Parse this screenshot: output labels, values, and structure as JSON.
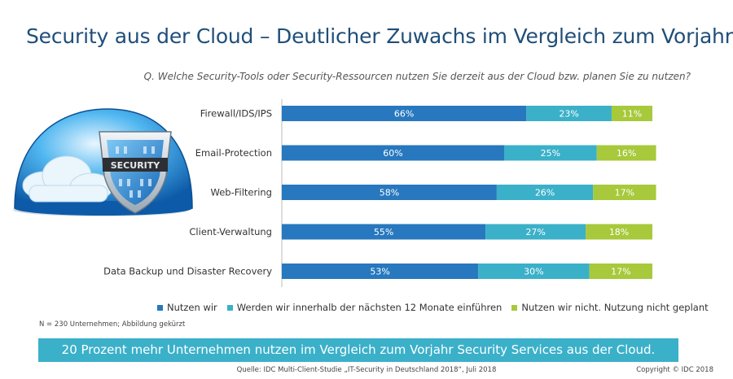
{
  "title": "Security aus der Cloud – Deutlicher Zuwachs im Vergleich zum Vorjahr",
  "question": "Q. Welche Security-Tools oder Security-Ressourcen nutzen Sie derzeit aus der Cloud bzw. planen Sie zu nutzen?",
  "illustration_text": "SECURITY",
  "chart_data": {
    "type": "bar",
    "orientation": "horizontal",
    "stacked": true,
    "categories": [
      "Firewall/IDS/IPS",
      "Email-Protection",
      "Web-Filtering",
      "Client-Verwaltung",
      "Data Backup und Disaster Recovery"
    ],
    "series": [
      {
        "name": "Nutzen wir",
        "color": "#2778be",
        "values": [
          66,
          60,
          58,
          55,
          53
        ]
      },
      {
        "name": "Werden wir innerhalb der nächsten 12 Monate einführen",
        "color": "#3bb0c9",
        "values": [
          23,
          25,
          26,
          27,
          30
        ]
      },
      {
        "name": "Nutzen wir nicht. Nutzung nicht geplant",
        "color": "#a7c93b",
        "values": [
          11,
          16,
          17,
          18,
          17
        ]
      }
    ],
    "value_suffix": "%",
    "xlim": [
      0,
      100
    ],
    "legend_position": "bottom"
  },
  "note": "N = 230 Unternehmen; Abbildung gekürzt",
  "banner": "20 Prozent mehr Unternehmen nutzen im Vergleich zum Vorjahr Security Services aus der Cloud.",
  "source": "Quelle: IDC Multi-Client-Studie „IT-Security in Deutschland 2018“, Juli 2018",
  "copyright": "Copyright © IDC 2018"
}
